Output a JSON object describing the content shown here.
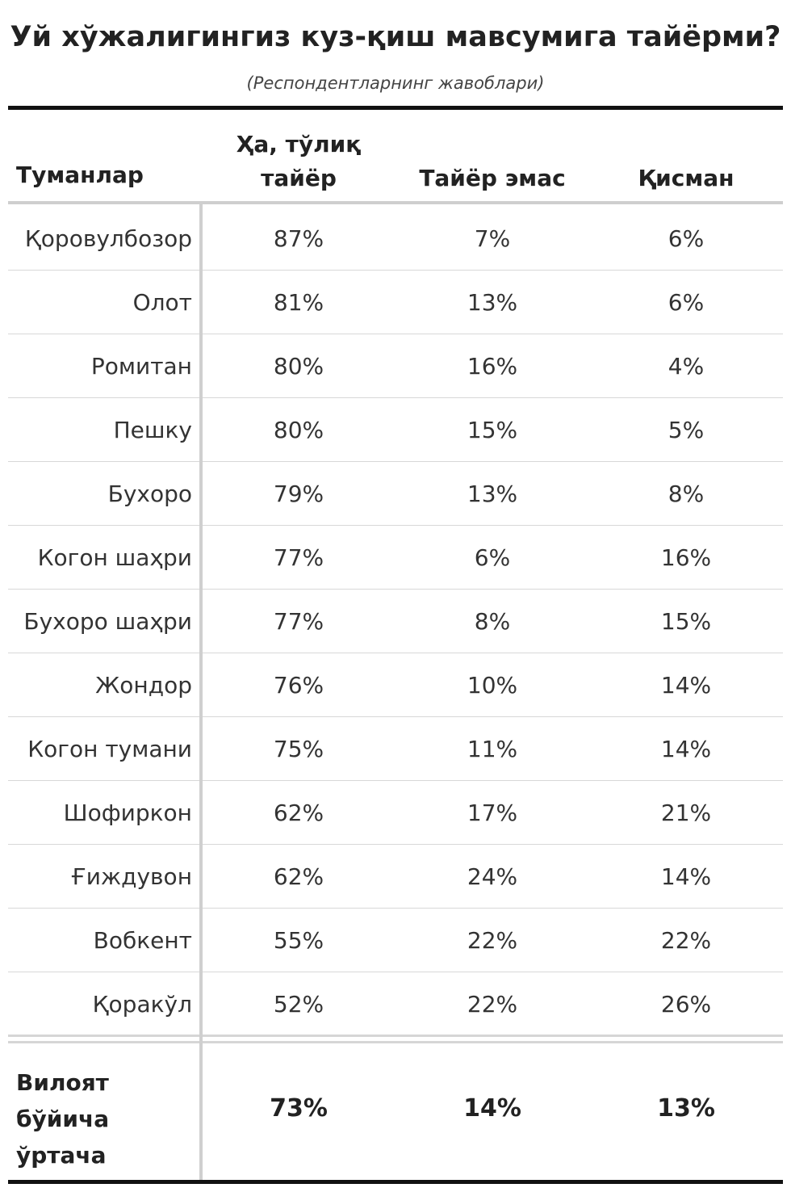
{
  "chart_data": {
    "type": "table",
    "title": "Уй хўжалигингиз куз-қиш мавсумига тайёрми?",
    "subtitle": "(Респондентларнинг жавоблари)",
    "columns": [
      "Туманлар",
      "Ҳа, тўлиқ тайёр",
      "Тайёр эмас",
      "Қисман"
    ],
    "rows": [
      {
        "name": "Қоровулбозор",
        "values": [
          "87%",
          "7%",
          "6%"
        ]
      },
      {
        "name": "Олот",
        "values": [
          "81%",
          "13%",
          "6%"
        ]
      },
      {
        "name": "Ромитан",
        "values": [
          "80%",
          "16%",
          "4%"
        ]
      },
      {
        "name": "Пешку",
        "values": [
          "80%",
          "15%",
          "5%"
        ]
      },
      {
        "name": "Бухоро",
        "values": [
          "79%",
          "13%",
          "8%"
        ]
      },
      {
        "name": "Когон шаҳри",
        "values": [
          "77%",
          "6%",
          "16%"
        ]
      },
      {
        "name": "Бухоро шаҳри",
        "values": [
          "77%",
          "8%",
          "15%"
        ]
      },
      {
        "name": "Жондор",
        "values": [
          "76%",
          "10%",
          "14%"
        ]
      },
      {
        "name": "Когон тумани",
        "values": [
          "75%",
          "11%",
          "14%"
        ]
      },
      {
        "name": "Шофиркон",
        "values": [
          "62%",
          "17%",
          "21%"
        ]
      },
      {
        "name": "Ғиждувон",
        "values": [
          "62%",
          "24%",
          "14%"
        ]
      },
      {
        "name": "Вобкент",
        "values": [
          "55%",
          "22%",
          "22%"
        ]
      },
      {
        "name": "Қоракўл",
        "values": [
          "52%",
          "22%",
          "26%"
        ]
      }
    ],
    "average": {
      "name": "Вилоят бўйича ўртача",
      "values": [
        "73%",
        "14%",
        "13%"
      ]
    }
  }
}
